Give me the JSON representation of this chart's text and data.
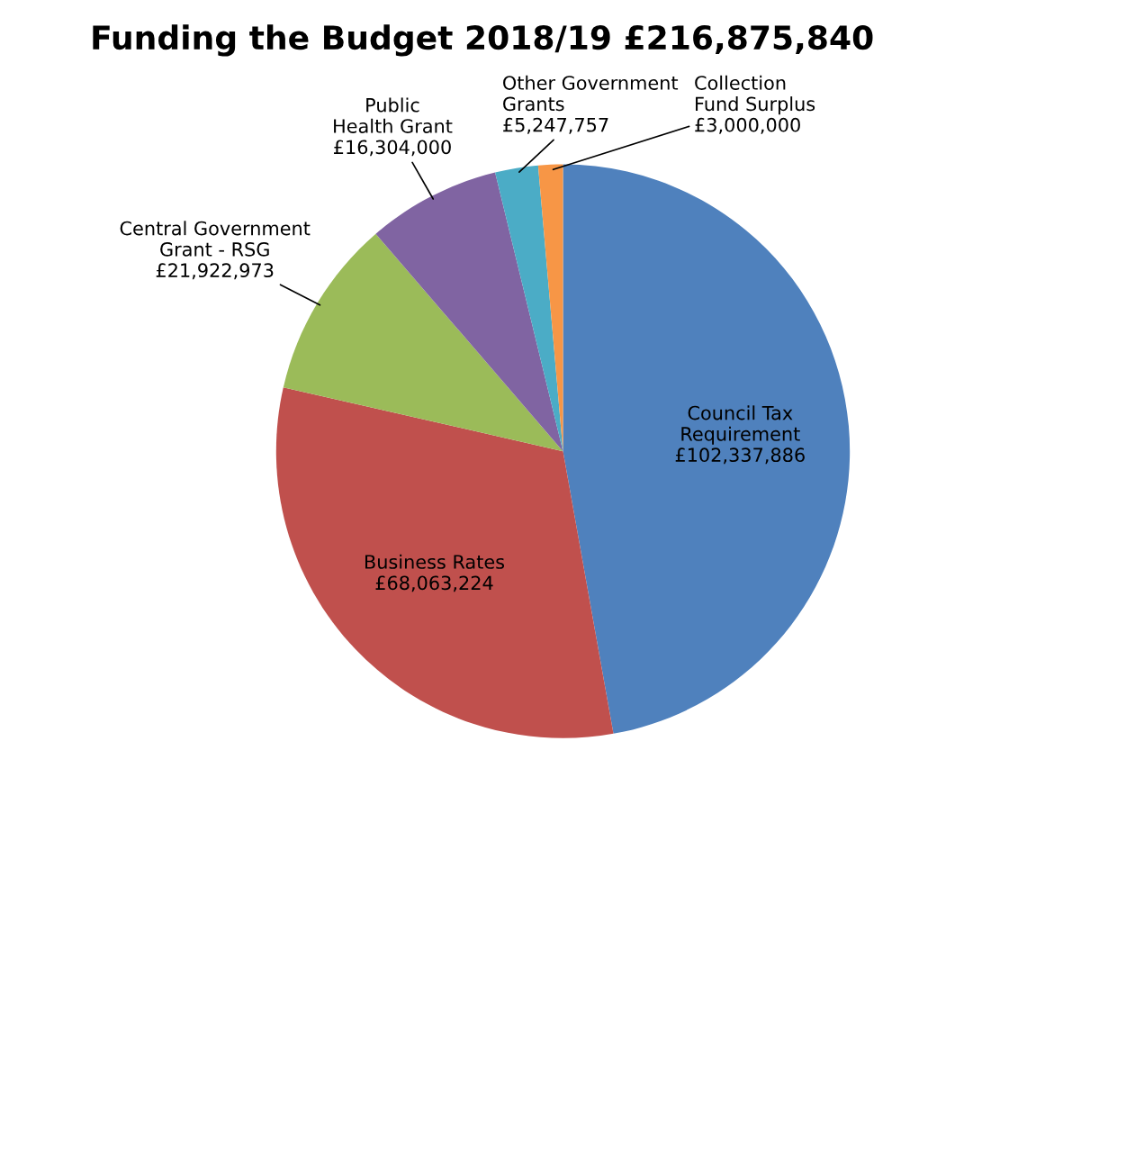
{
  "chart_data": {
    "type": "pie",
    "title": "Funding the Budget 2018/19 £216,875,840",
    "categories": [
      "Council Tax Requirement",
      "Business Rates",
      "Central Government Grant - RSG",
      "Public Health Grant",
      "Other Government Grants",
      "Collection Fund Surplus"
    ],
    "values": [
      102337886,
      68063224,
      21922973,
      16304000,
      5247757,
      3000000
    ],
    "value_labels": [
      "£102,337,886",
      "£68,063,224",
      "£21,922,973",
      "£16,304,000",
      "£5,247,757",
      "£3,000,000"
    ],
    "colors": [
      "#4f81bd",
      "#c0504d",
      "#9bbb59",
      "#8064a2",
      "#4bacc6",
      "#f79646"
    ],
    "legend": false
  }
}
